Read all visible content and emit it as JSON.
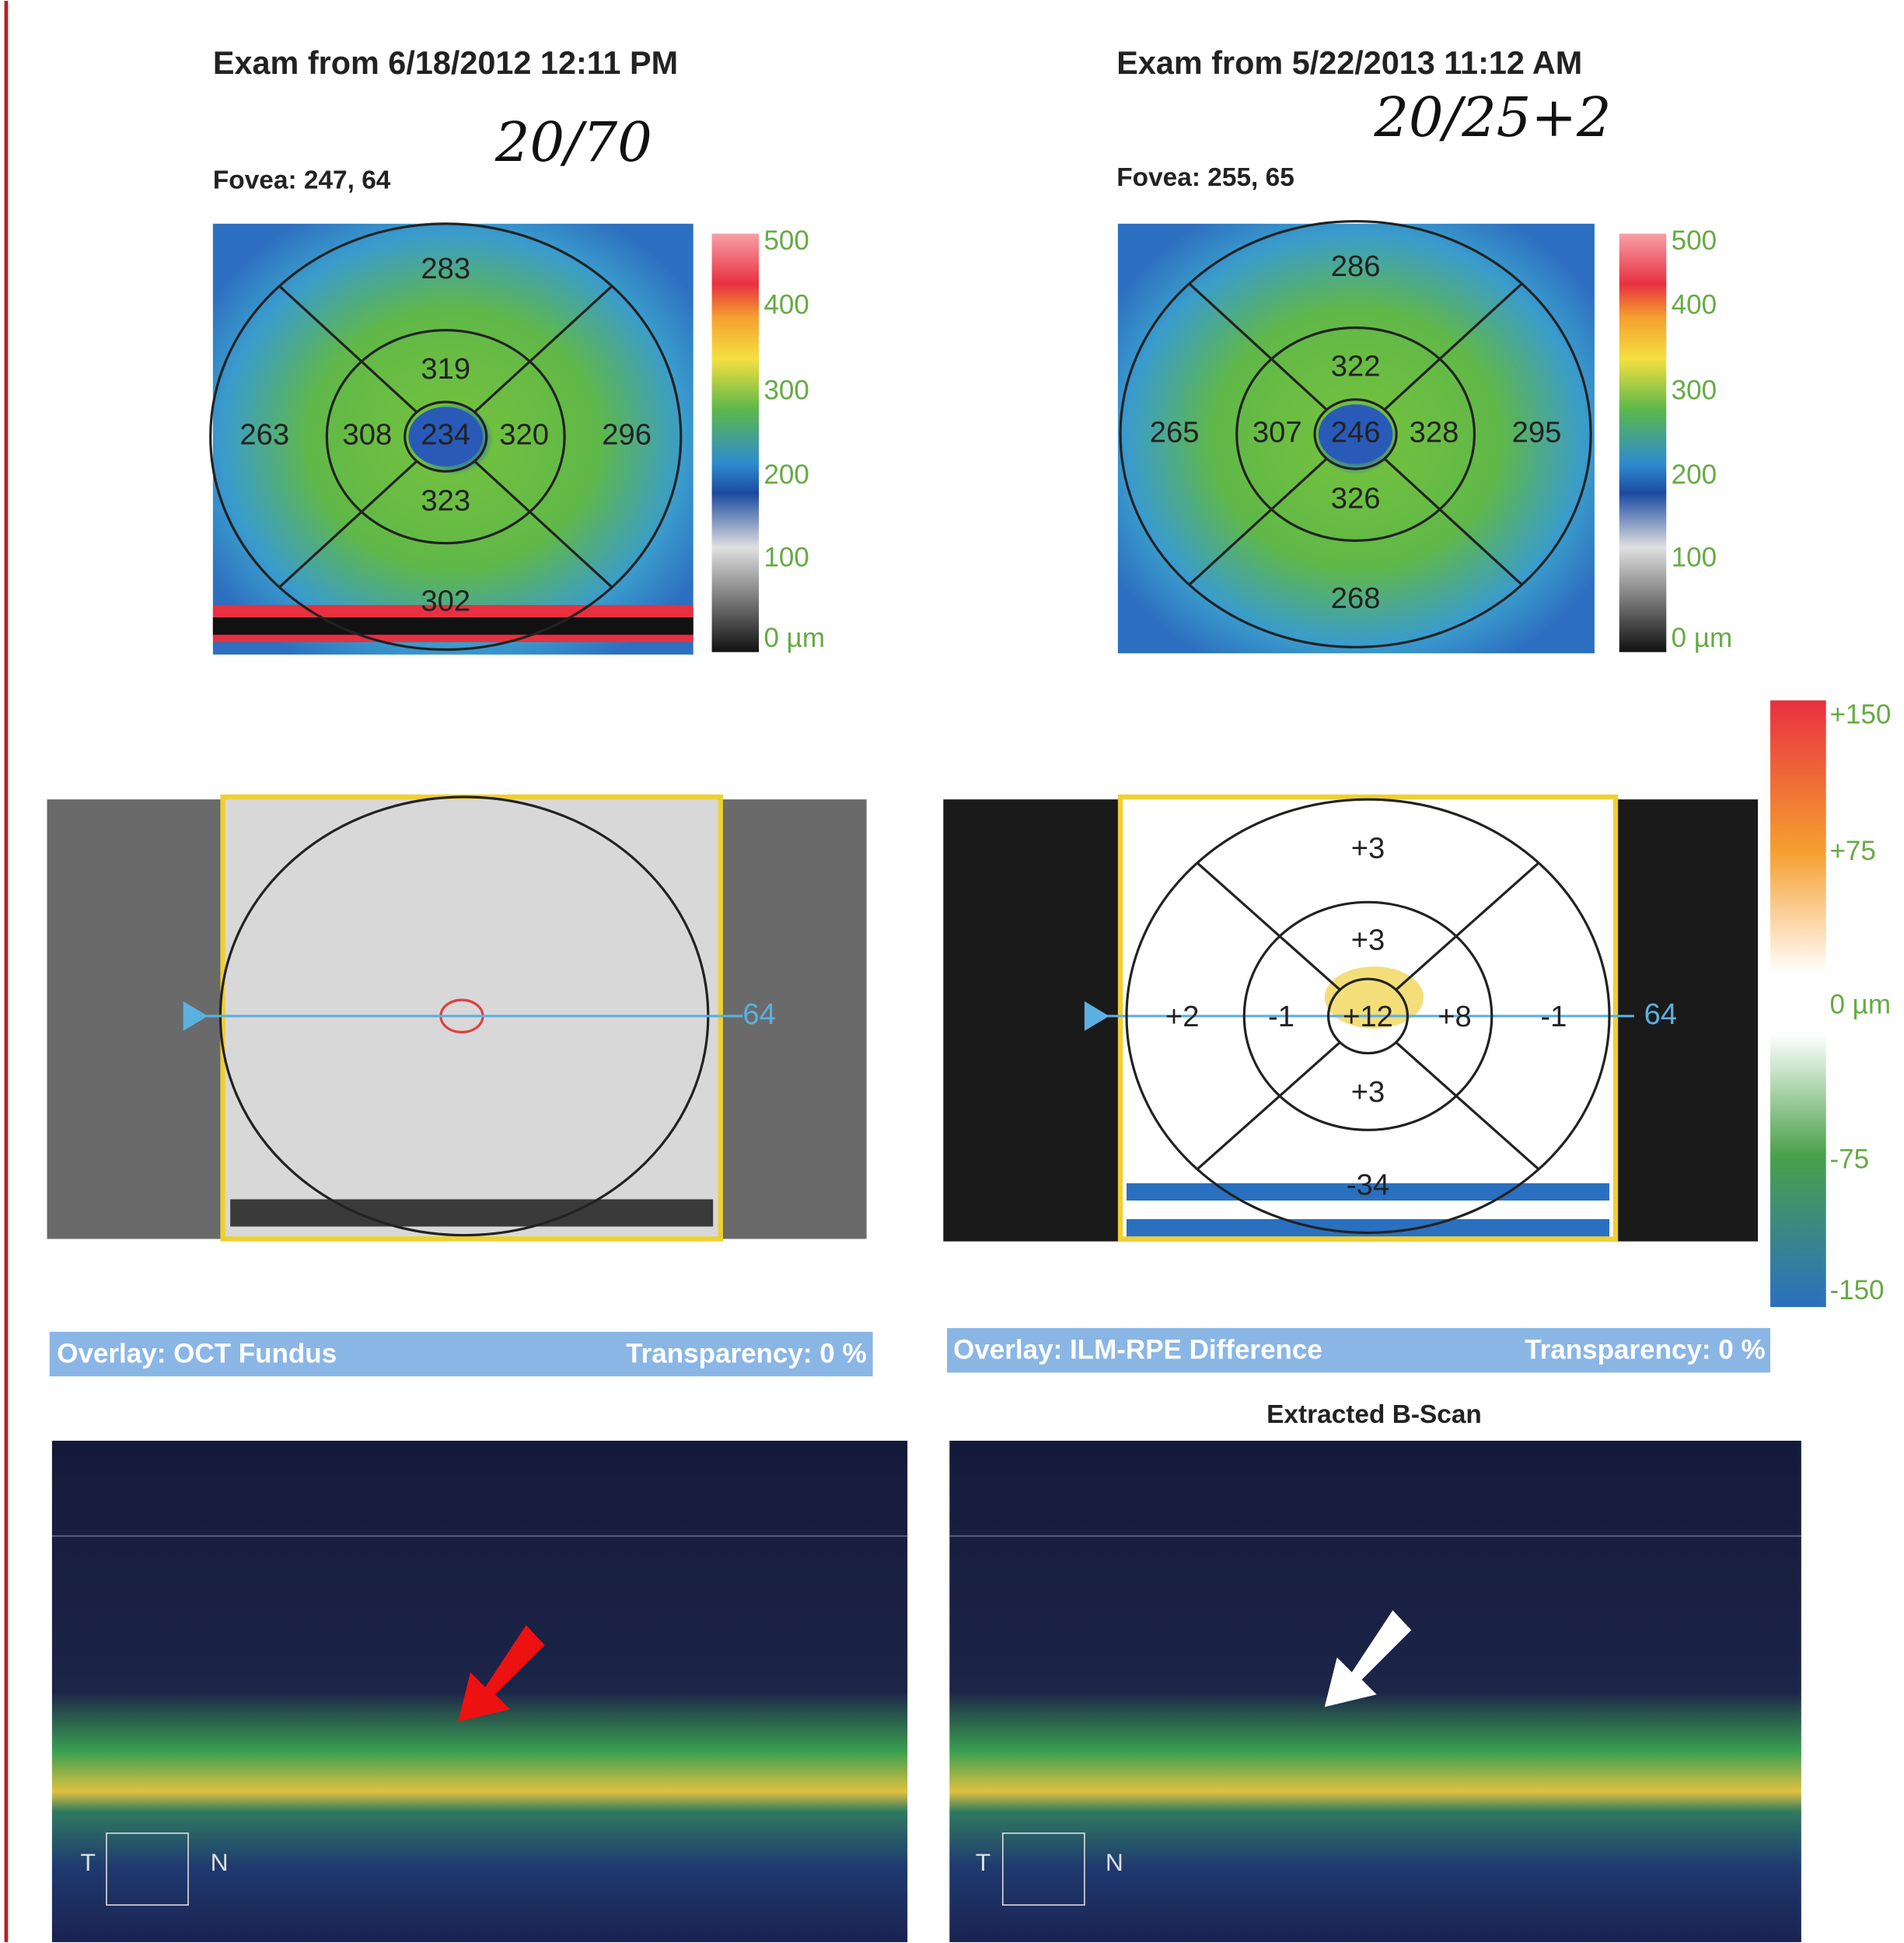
{
  "exams": [
    {
      "title": "Exam from 6/18/2012 12:11 PM",
      "acuity": "20/70",
      "fovea": "Fovea: 247, 64",
      "sectors": [
        "283",
        "319",
        "263",
        "308",
        "234",
        "320",
        "296",
        "323",
        "302"
      ],
      "scale": [
        "500",
        "400",
        "300",
        "200",
        "100",
        "0 µm"
      ],
      "marker": "64",
      "overlay": "Overlay: OCT Fundus",
      "transparency": "Transparency: 0 %",
      "bscan_labels": [
        "T",
        "N"
      ]
    },
    {
      "title": "Exam from 5/22/2013 11:12 AM",
      "acuity": "20/25+2",
      "fovea": "Fovea: 255, 65",
      "sectors": [
        "286",
        "322",
        "265",
        "307",
        "246",
        "328",
        "295",
        "326",
        "268"
      ],
      "scale": [
        "500",
        "400",
        "300",
        "200",
        "100",
        "0 µm"
      ],
      "marker": "64",
      "overlay": "Overlay: ILM-RPE Difference",
      "transparency": "Transparency: 0 %",
      "bscan_labels": [
        "T",
        "N"
      ]
    }
  ],
  "difference": {
    "sectors": [
      "+3",
      "+3",
      "+2",
      "-1",
      "+12",
      "+8",
      "-1",
      "+3",
      "-34"
    ],
    "scale": [
      "+150",
      "+75",
      "0 µm",
      "-75",
      "-150"
    ]
  },
  "bscan_title": "Extracted B-Scan"
}
